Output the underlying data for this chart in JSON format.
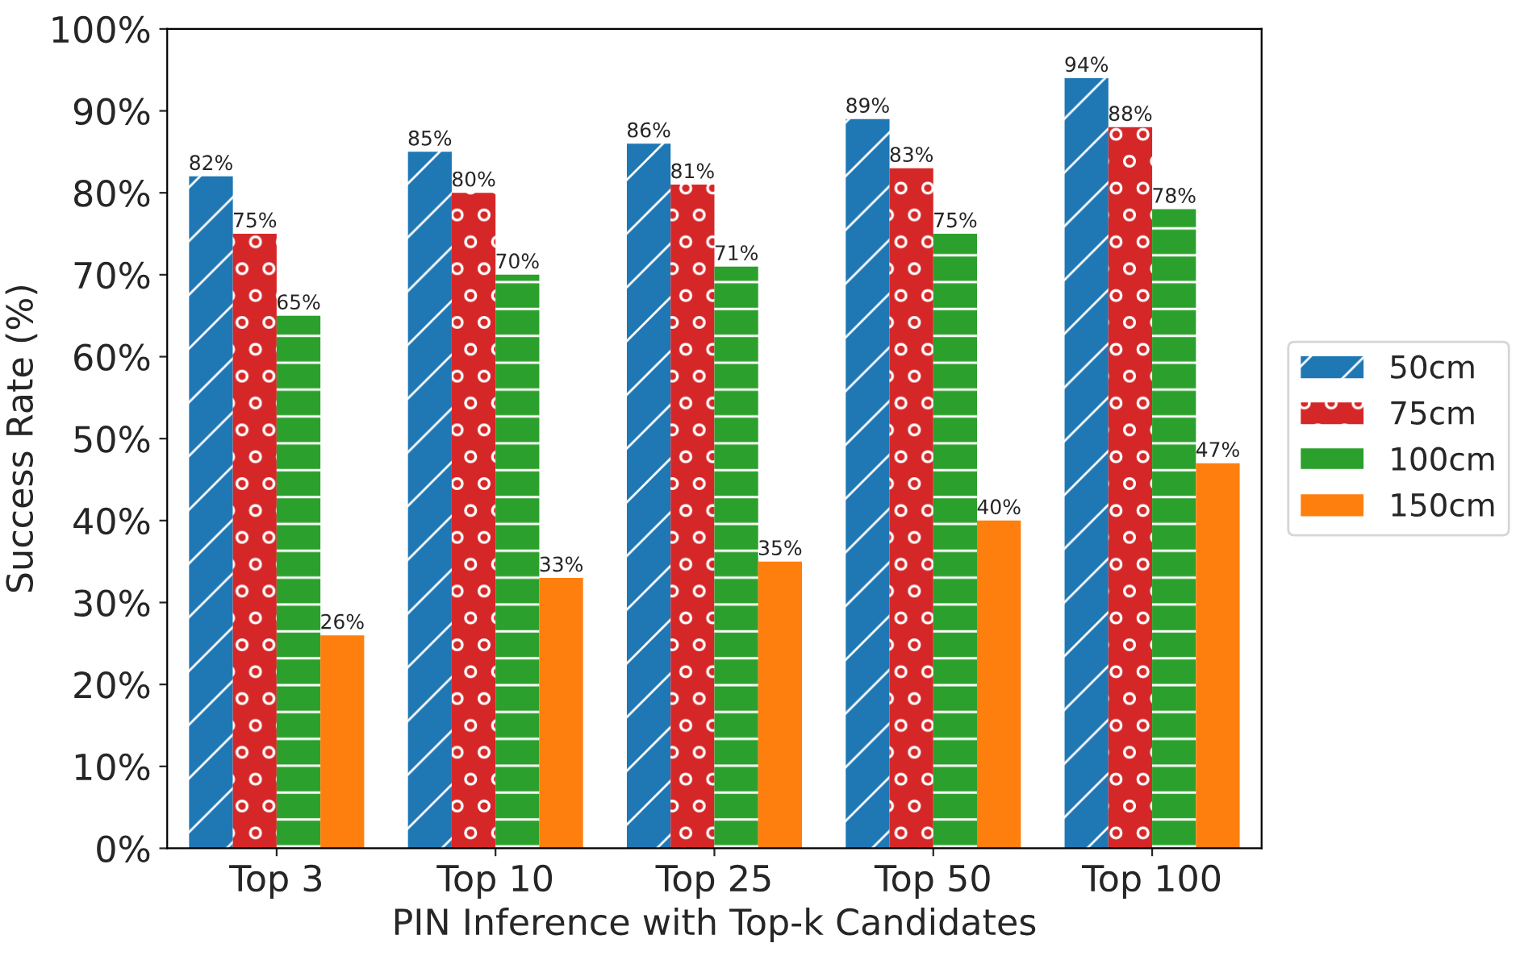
{
  "chart_data": {
    "type": "bar",
    "xlabel": "PIN Inference with Top-k Candidates",
    "ylabel": "Success Rate (%)",
    "categories": [
      "Top 3",
      "Top 10",
      "Top 25",
      "Top 50",
      "Top 100"
    ],
    "series": [
      {
        "name": "50cm",
        "color": "#1f77b4",
        "values": [
          82,
          85,
          86,
          89,
          94
        ],
        "value_labels": [
          "82%",
          "85%",
          "86%",
          "89%",
          "94%"
        ]
      },
      {
        "name": "75cm",
        "color": "#d62728",
        "values": [
          75,
          80,
          81,
          83,
          88
        ],
        "value_labels": [
          "75%",
          "80%",
          "81%",
          "83%",
          "88%"
        ]
      },
      {
        "name": "100cm",
        "color": "#2ca02c",
        "values": [
          65,
          70,
          71,
          75,
          78
        ],
        "value_labels": [
          "65%",
          "70%",
          "71%",
          "75%",
          "78%"
        ]
      },
      {
        "name": "150cm",
        "color": "#ff7f0e",
        "values": [
          26,
          33,
          35,
          40,
          47
        ],
        "value_labels": [
          "26%",
          "33%",
          "35%",
          "40%",
          "47%"
        ]
      }
    ],
    "ylim": [
      0,
      100
    ],
    "yticks": [
      {
        "value": 0,
        "label": "0%"
      },
      {
        "value": 10,
        "label": "10%"
      },
      {
        "value": 20,
        "label": "20%"
      },
      {
        "value": 30,
        "label": "30%"
      },
      {
        "value": 40,
        "label": "40%"
      },
      {
        "value": 50,
        "label": "50%"
      },
      {
        "value": 60,
        "label": "60%"
      },
      {
        "value": 70,
        "label": "70%"
      },
      {
        "value": 80,
        "label": "80%"
      },
      {
        "value": 90,
        "label": "90%"
      },
      {
        "value": 100,
        "label": "100%"
      }
    ],
    "grid": false,
    "legend": "right"
  }
}
